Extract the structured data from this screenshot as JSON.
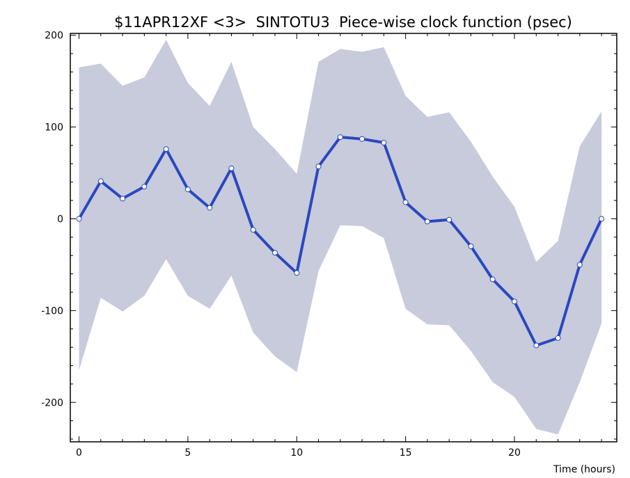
{
  "chart_data": {
    "type": "line",
    "title": "$11APR12XF <3>  SINTOTU3  Piece-wise clock function (psec)",
    "xlabel": "Time (hours)",
    "ylabel": "",
    "xlim": [
      -0.4,
      24.7
    ],
    "ylim": [
      -243,
      202
    ],
    "x_ticks": [
      0,
      5,
      10,
      15,
      20
    ],
    "y_ticks": [
      -200,
      -100,
      0,
      100,
      200
    ],
    "x_tick_labels": [
      "0",
      "5",
      "10",
      "15",
      "20"
    ],
    "y_tick_labels": [
      "-200",
      "-100",
      "0",
      "100",
      "200"
    ],
    "grid": false,
    "colors": {
      "line": "#2b47bf",
      "band": "#c7cbdb",
      "marker_fill": "#ffffff",
      "axis": "#000000"
    },
    "series": [
      {
        "x": [
          0,
          1,
          2,
          3,
          4,
          5,
          6,
          7,
          8,
          9,
          10,
          11,
          12,
          13,
          14,
          15,
          16,
          17,
          18,
          19,
          20,
          21,
          22,
          23,
          24
        ],
        "values": [
          0,
          41,
          22,
          35,
          76,
          32,
          12,
          55,
          -12,
          -37,
          -59,
          57,
          89,
          87,
          83,
          18,
          -3,
          -1,
          -30,
          -66,
          -90,
          -138,
          -130,
          -50,
          0
        ]
      }
    ],
    "band": {
      "x": [
        0,
        1,
        2,
        3,
        4,
        5,
        6,
        7,
        8,
        9,
        10,
        11,
        12,
        13,
        14,
        15,
        16,
        17,
        18,
        19,
        20,
        21,
        22,
        23,
        24
      ],
      "upper": [
        165,
        169,
        145,
        154,
        195,
        148,
        123,
        171,
        100,
        76,
        49,
        171,
        185,
        182,
        187,
        134,
        111,
        116,
        84,
        46,
        13,
        -47,
        -24,
        79,
        117
      ],
      "lower": [
        -165,
        -86,
        -101,
        -84,
        -44,
        -84,
        -98,
        -62,
        -124,
        -150,
        -167,
        -57,
        -7,
        -8,
        -21,
        -98,
        -115,
        -116,
        -144,
        -178,
        -194,
        -229,
        -235,
        -178,
        -114
      ]
    }
  }
}
